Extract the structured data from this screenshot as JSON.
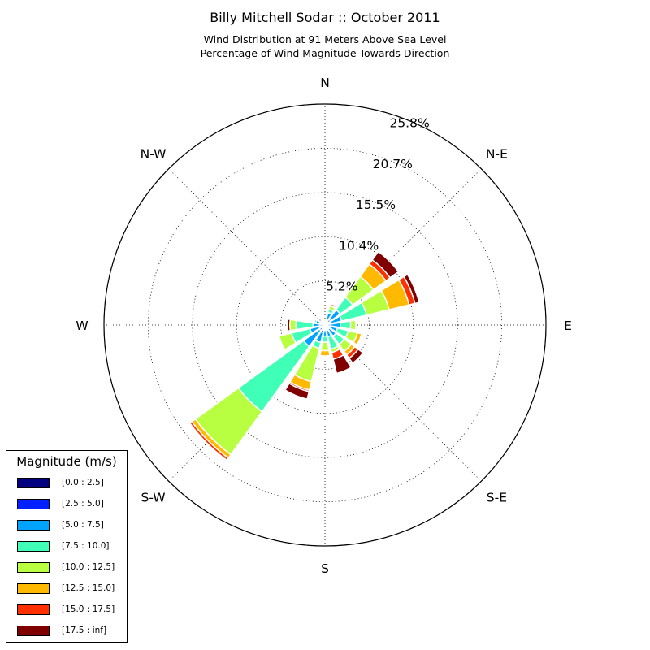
{
  "chart_data": {
    "type": "polar-bar",
    "title": "Billy Mitchell Sodar :: October 2011",
    "subtitle": [
      "Wind Distribution at 91 Meters Above Sea Level",
      "Percentage of Wind Magnitude Towards Direction"
    ],
    "direction_labels": [
      "N",
      "N-E",
      "E",
      "S-E",
      "S",
      "S-W",
      "W",
      "N-W"
    ],
    "radial_ticks": [
      "5.2%",
      "10.4%",
      "15.5%",
      "20.7%",
      "25.8%"
    ],
    "r_max": 25.8,
    "grid": true,
    "legend": {
      "title": "Magnitude (m/s)",
      "placement": "lower-left",
      "bins": [
        "[0.0 : 2.5]",
        "[2.5 : 5.0]",
        "[5.0 : 7.5]",
        "[7.5 : 10.0]",
        "[10.0 : 12.5]",
        "[12.5 : 15.0]",
        "[15.0 : 17.5]",
        "[17.5 : inf]"
      ],
      "colors": [
        "#000080",
        "#0020ff",
        "#00a4ff",
        "#40ffb7",
        "#b7ff40",
        "#ffb900",
        "#ff3000",
        "#800000"
      ]
    },
    "direction_bins_deg": [
      0,
      22.5,
      45,
      67.5,
      90,
      112.5,
      135,
      157.5,
      180,
      202.5,
      225,
      247.5,
      270,
      292.5,
      315,
      337.5
    ],
    "sectors": [
      {
        "direction": 0,
        "cumulative": [
          0.1,
          0.3,
          0.6,
          0.6,
          0.6,
          0.6,
          0.6,
          0.6
        ]
      },
      {
        "direction": 22.5,
        "cumulative": [
          0.2,
          0.6,
          1.5,
          1.9,
          2.3,
          2.4,
          2.6,
          2.7
        ]
      },
      {
        "direction": 45,
        "cumulative": [
          0.2,
          0.8,
          2.2,
          4.0,
          7.0,
          8.8,
          9.4,
          10.6
        ]
      },
      {
        "direction": 67.5,
        "cumulative": [
          0.2,
          0.7,
          2.0,
          5.0,
          7.7,
          10.1,
          10.8,
          11.3
        ]
      },
      {
        "direction": 90,
        "cumulative": [
          0.2,
          0.7,
          1.8,
          3.0,
          3.6,
          3.6,
          3.6,
          3.6
        ]
      },
      {
        "direction": 112.5,
        "cumulative": [
          0.2,
          0.6,
          1.5,
          2.8,
          3.9,
          4.4,
          4.5,
          4.5
        ]
      },
      {
        "direction": 135,
        "cumulative": [
          0.2,
          0.6,
          1.6,
          2.8,
          3.8,
          4.3,
          4.8,
          5.5
        ]
      },
      {
        "direction": 157.5,
        "cumulative": [
          0.2,
          0.6,
          1.4,
          2.9,
          3.3,
          3.3,
          4.1,
          5.8
        ]
      },
      {
        "direction": 180,
        "cumulative": [
          0.2,
          0.6,
          1.3,
          2.0,
          3.0,
          3.6,
          3.6,
          3.6
        ]
      },
      {
        "direction": 202.5,
        "cumulative": [
          0.2,
          0.9,
          2.1,
          2.8,
          6.8,
          7.8,
          8.0,
          8.9
        ]
      },
      {
        "direction": 225,
        "cumulative": [
          0.2,
          0.8,
          3.1,
          12.5,
          18.7,
          19.2,
          19.5,
          19.5
        ]
      },
      {
        "direction": 247.5,
        "cumulative": [
          0.2,
          0.6,
          1.8,
          4.0,
          5.5,
          5.5,
          5.5,
          5.5
        ]
      },
      {
        "direction": 270,
        "cumulative": [
          0.2,
          0.6,
          1.4,
          3.4,
          4.1,
          4.1,
          4.1,
          4.4
        ]
      },
      {
        "direction": 292.5,
        "cumulative": [
          0.2,
          0.6,
          1.1,
          1.3,
          1.3,
          1.3,
          1.3,
          1.3
        ]
      },
      {
        "direction": 315,
        "cumulative": [
          0.1,
          0.3,
          0.5,
          0.5,
          0.5,
          0.5,
          0.5,
          0.5
        ]
      },
      {
        "direction": 337.5,
        "cumulative": [
          0.1,
          0.2,
          0.3,
          0.3,
          0.3,
          0.3,
          0.3,
          0.3
        ]
      }
    ]
  }
}
